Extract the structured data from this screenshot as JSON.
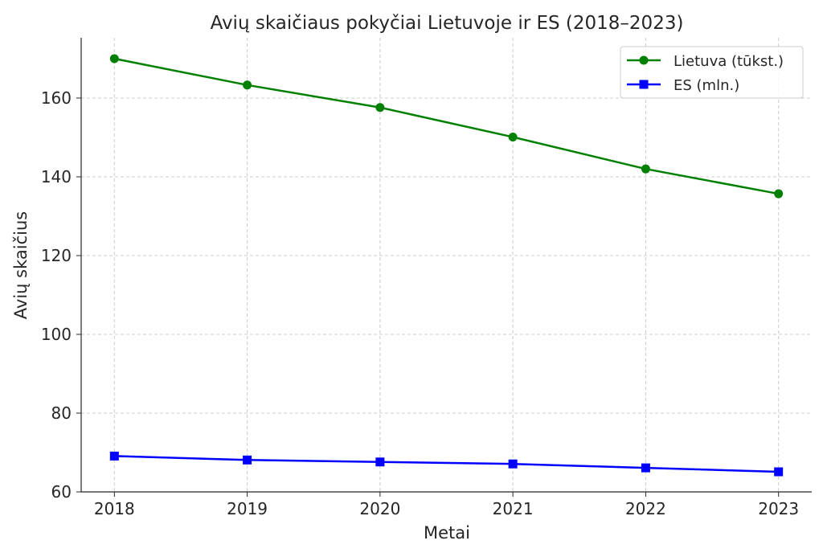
{
  "chart_data": {
    "type": "line",
    "title": "Avių skaičiaus pokyčiai Lietuvoje ir ES (2018–2023)",
    "xlabel": "Metai",
    "ylabel": "Avių skaičius",
    "x": [
      2018,
      2019,
      2020,
      2021,
      2022,
      2023
    ],
    "xticks": [
      "2018",
      "2019",
      "2020",
      "2021",
      "2022",
      "2023"
    ],
    "yticks": [
      "60",
      "80",
      "100",
      "120",
      "140",
      "160"
    ],
    "ytick_values": [
      60,
      80,
      100,
      120,
      140,
      160
    ],
    "xlim": [
      2017.75,
      2023.25
    ],
    "ylim": [
      60,
      175.3
    ],
    "grid": true,
    "legend_position": "top-right",
    "series": [
      {
        "name": "Lietuva (tūkst.)",
        "color": "#008000",
        "marker": "circle",
        "values": [
          170,
          163.3,
          157.6,
          150.1,
          142,
          135.7
        ]
      },
      {
        "name": "ES (mln.)",
        "color": "#0000ff",
        "marker": "square",
        "values": [
          69.1,
          68.1,
          67.6,
          67.1,
          66.1,
          65.1
        ]
      }
    ]
  }
}
